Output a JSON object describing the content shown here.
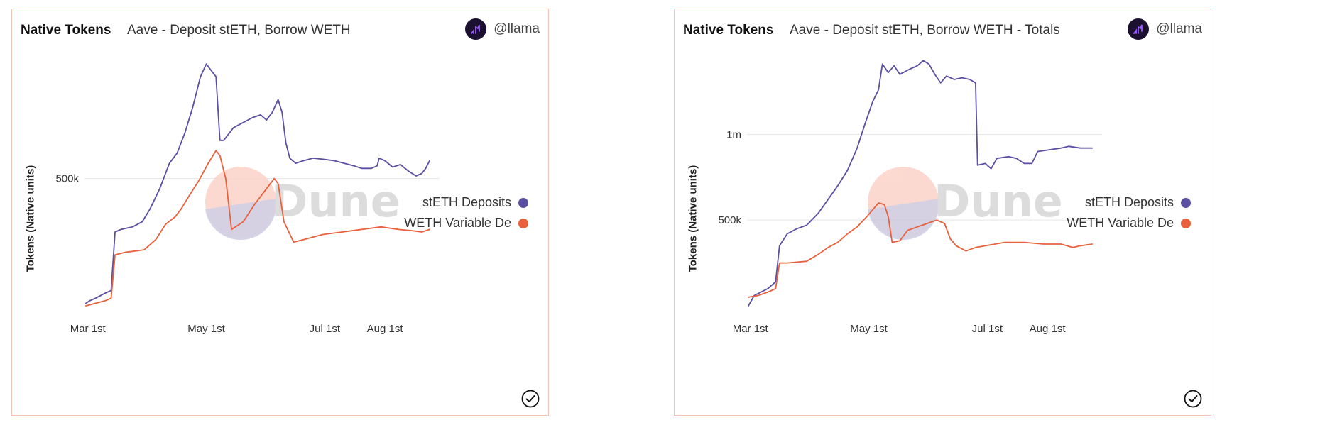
{
  "colors": {
    "steth": "#5a4fa0",
    "weth": "#e8603c",
    "grid": "#e6e6e6",
    "axis_text": "#333333",
    "watermark": "#d6d6d6",
    "border": "#f3c4b4"
  },
  "panels": [
    {
      "kind": "Native Tokens",
      "title": "Aave - Deposit stETH, Borrow WETH",
      "author": "@llama",
      "ylabel": "Tokens (Native units)",
      "watermark": "Dune",
      "legend": [
        "stETH Deposits",
        "WETH Variable De"
      ]
    },
    {
      "kind": "Native Tokens",
      "title": "Aave - Deposit stETH, Borrow WETH - Totals",
      "author": "@llama",
      "ylabel": "Tokens (Native units)",
      "watermark": "Dune",
      "legend": [
        "stETH Deposits",
        "WETH Variable De"
      ]
    }
  ],
  "chart_data": [
    {
      "type": "line",
      "xlabel": "",
      "ylabel": "Tokens (Native units)",
      "x_range": [
        "2022-02-28",
        "2022-08-24"
      ],
      "x_ticks": [
        {
          "label": "Mar 1st",
          "date": "2022-03-01"
        },
        {
          "label": "May 1st",
          "date": "2022-05-01"
        },
        {
          "label": "Jul 1st",
          "date": "2022-07-01"
        },
        {
          "label": "Aug 1st",
          "date": "2022-08-01"
        }
      ],
      "ylim": [
        0,
        970000
      ],
      "y_ticks": [
        {
          "label": "500k",
          "value": 500000
        }
      ],
      "grid": true,
      "legend_position": "right",
      "series": [
        {
          "name": "stETH Deposits",
          "points": [
            [
              "2022-02-28",
              10000
            ],
            [
              "2022-03-02",
              20000
            ],
            [
              "2022-03-05",
              30000
            ],
            [
              "2022-03-10",
              50000
            ],
            [
              "2022-03-13",
              60000
            ],
            [
              "2022-03-15",
              290000
            ],
            [
              "2022-03-18",
              300000
            ],
            [
              "2022-03-24",
              310000
            ],
            [
              "2022-03-29",
              330000
            ],
            [
              "2022-04-02",
              380000
            ],
            [
              "2022-04-07",
              460000
            ],
            [
              "2022-04-12",
              560000
            ],
            [
              "2022-04-16",
              600000
            ],
            [
              "2022-04-20",
              680000
            ],
            [
              "2022-04-24",
              780000
            ],
            [
              "2022-04-28",
              900000
            ],
            [
              "2022-05-01",
              950000
            ],
            [
              "2022-05-04",
              920000
            ],
            [
              "2022-05-06",
              900000
            ],
            [
              "2022-05-08",
              650000
            ],
            [
              "2022-05-10",
              650000
            ],
            [
              "2022-05-15",
              700000
            ],
            [
              "2022-05-20",
              720000
            ],
            [
              "2022-05-25",
              740000
            ],
            [
              "2022-05-29",
              750000
            ],
            [
              "2022-06-01",
              730000
            ],
            [
              "2022-06-04",
              760000
            ],
            [
              "2022-06-07",
              810000
            ],
            [
              "2022-06-09",
              760000
            ],
            [
              "2022-06-11",
              640000
            ],
            [
              "2022-06-13",
              580000
            ],
            [
              "2022-06-16",
              560000
            ],
            [
              "2022-06-20",
              570000
            ],
            [
              "2022-06-25",
              580000
            ],
            [
              "2022-07-01",
              575000
            ],
            [
              "2022-07-06",
              570000
            ],
            [
              "2022-07-11",
              560000
            ],
            [
              "2022-07-16",
              550000
            ],
            [
              "2022-07-20",
              540000
            ],
            [
              "2022-07-25",
              540000
            ],
            [
              "2022-07-28",
              550000
            ],
            [
              "2022-07-29",
              580000
            ],
            [
              "2022-08-01",
              570000
            ],
            [
              "2022-08-05",
              545000
            ],
            [
              "2022-08-09",
              555000
            ],
            [
              "2022-08-13",
              530000
            ],
            [
              "2022-08-17",
              510000
            ],
            [
              "2022-08-20",
              520000
            ],
            [
              "2022-08-22",
              540000
            ],
            [
              "2022-08-24",
              570000
            ]
          ]
        },
        {
          "name": "WETH Variable De",
          "points": [
            [
              "2022-02-28",
              0
            ],
            [
              "2022-03-05",
              10000
            ],
            [
              "2022-03-10",
              20000
            ],
            [
              "2022-03-13",
              30000
            ],
            [
              "2022-03-15",
              200000
            ],
            [
              "2022-03-20",
              210000
            ],
            [
              "2022-03-30",
              220000
            ],
            [
              "2022-04-05",
              260000
            ],
            [
              "2022-04-10",
              320000
            ],
            [
              "2022-04-15",
              350000
            ],
            [
              "2022-04-18",
              380000
            ],
            [
              "2022-04-22",
              430000
            ],
            [
              "2022-04-27",
              490000
            ],
            [
              "2022-05-02",
              560000
            ],
            [
              "2022-05-06",
              610000
            ],
            [
              "2022-05-08",
              590000
            ],
            [
              "2022-05-11",
              500000
            ],
            [
              "2022-05-14",
              300000
            ],
            [
              "2022-05-20",
              330000
            ],
            [
              "2022-05-26",
              400000
            ],
            [
              "2022-05-31",
              450000
            ],
            [
              "2022-06-05",
              500000
            ],
            [
              "2022-06-07",
              480000
            ],
            [
              "2022-06-10",
              330000
            ],
            [
              "2022-06-15",
              250000
            ],
            [
              "2022-06-20",
              260000
            ],
            [
              "2022-06-30",
              280000
            ],
            [
              "2022-07-10",
              290000
            ],
            [
              "2022-07-20",
              300000
            ],
            [
              "2022-07-30",
              310000
            ],
            [
              "2022-08-08",
              300000
            ],
            [
              "2022-08-15",
              295000
            ],
            [
              "2022-08-20",
              290000
            ],
            [
              "2022-08-24",
              300000
            ]
          ]
        }
      ]
    },
    {
      "type": "line",
      "xlabel": "",
      "ylabel": "Tokens (Native units)",
      "x_range": [
        "2022-02-28",
        "2022-08-24"
      ],
      "x_ticks": [
        {
          "label": "Mar 1st",
          "date": "2022-03-01"
        },
        {
          "label": "May 1st",
          "date": "2022-05-01"
        },
        {
          "label": "Jul 1st",
          "date": "2022-07-01"
        },
        {
          "label": "Aug 1st",
          "date": "2022-08-01"
        }
      ],
      "ylim": [
        0,
        1440000
      ],
      "y_ticks": [
        {
          "label": "500k",
          "value": 500000
        },
        {
          "label": "1m",
          "value": 1000000
        }
      ],
      "grid": true,
      "legend_position": "right",
      "series": [
        {
          "name": "stETH Deposits",
          "points": [
            [
              "2022-02-28",
              0
            ],
            [
              "2022-03-03",
              60000
            ],
            [
              "2022-03-10",
              100000
            ],
            [
              "2022-03-14",
              140000
            ],
            [
              "2022-03-16",
              350000
            ],
            [
              "2022-03-20",
              420000
            ],
            [
              "2022-03-25",
              450000
            ],
            [
              "2022-03-30",
              470000
            ],
            [
              "2022-04-05",
              540000
            ],
            [
              "2022-04-10",
              620000
            ],
            [
              "2022-04-15",
              700000
            ],
            [
              "2022-04-20",
              790000
            ],
            [
              "2022-04-25",
              920000
            ],
            [
              "2022-04-29",
              1060000
            ],
            [
              "2022-05-03",
              1190000
            ],
            [
              "2022-05-06",
              1260000
            ],
            [
              "2022-05-08",
              1410000
            ],
            [
              "2022-05-11",
              1360000
            ],
            [
              "2022-05-14",
              1400000
            ],
            [
              "2022-05-17",
              1350000
            ],
            [
              "2022-05-22",
              1380000
            ],
            [
              "2022-05-26",
              1400000
            ],
            [
              "2022-05-29",
              1430000
            ],
            [
              "2022-06-01",
              1410000
            ],
            [
              "2022-06-04",
              1350000
            ],
            [
              "2022-06-07",
              1300000
            ],
            [
              "2022-06-10",
              1340000
            ],
            [
              "2022-06-14",
              1320000
            ],
            [
              "2022-06-18",
              1330000
            ],
            [
              "2022-06-22",
              1320000
            ],
            [
              "2022-06-25",
              1300000
            ],
            [
              "2022-06-26",
              820000
            ],
            [
              "2022-06-30",
              830000
            ],
            [
              "2022-07-03",
              800000
            ],
            [
              "2022-07-06",
              860000
            ],
            [
              "2022-07-12",
              870000
            ],
            [
              "2022-07-16",
              860000
            ],
            [
              "2022-07-20",
              830000
            ],
            [
              "2022-07-24",
              830000
            ],
            [
              "2022-07-27",
              900000
            ],
            [
              "2022-08-02",
              910000
            ],
            [
              "2022-08-08",
              920000
            ],
            [
              "2022-08-12",
              930000
            ],
            [
              "2022-08-18",
              920000
            ],
            [
              "2022-08-24",
              920000
            ]
          ]
        },
        {
          "name": "WETH Variable De",
          "points": [
            [
              "2022-02-28",
              50000
            ],
            [
              "2022-03-05",
              60000
            ],
            [
              "2022-03-10",
              80000
            ],
            [
              "2022-03-14",
              100000
            ],
            [
              "2022-03-16",
              250000
            ],
            [
              "2022-03-20",
              250000
            ],
            [
              "2022-03-30",
              260000
            ],
            [
              "2022-04-05",
              300000
            ],
            [
              "2022-04-10",
              340000
            ],
            [
              "2022-04-15",
              370000
            ],
            [
              "2022-04-20",
              420000
            ],
            [
              "2022-04-25",
              460000
            ],
            [
              "2022-04-30",
              520000
            ],
            [
              "2022-05-03",
              560000
            ],
            [
              "2022-05-06",
              600000
            ],
            [
              "2022-05-09",
              590000
            ],
            [
              "2022-05-11",
              520000
            ],
            [
              "2022-05-13",
              370000
            ],
            [
              "2022-05-17",
              380000
            ],
            [
              "2022-05-21",
              440000
            ],
            [
              "2022-05-26",
              460000
            ],
            [
              "2022-05-31",
              480000
            ],
            [
              "2022-06-05",
              500000
            ],
            [
              "2022-06-09",
              480000
            ],
            [
              "2022-06-12",
              390000
            ],
            [
              "2022-06-15",
              350000
            ],
            [
              "2022-06-20",
              320000
            ],
            [
              "2022-06-25",
              340000
            ],
            [
              "2022-06-30",
              350000
            ],
            [
              "2022-07-10",
              370000
            ],
            [
              "2022-07-20",
              370000
            ],
            [
              "2022-07-30",
              360000
            ],
            [
              "2022-08-08",
              360000
            ],
            [
              "2022-08-14",
              340000
            ],
            [
              "2022-08-18",
              350000
            ],
            [
              "2022-08-24",
              360000
            ]
          ]
        }
      ]
    }
  ]
}
